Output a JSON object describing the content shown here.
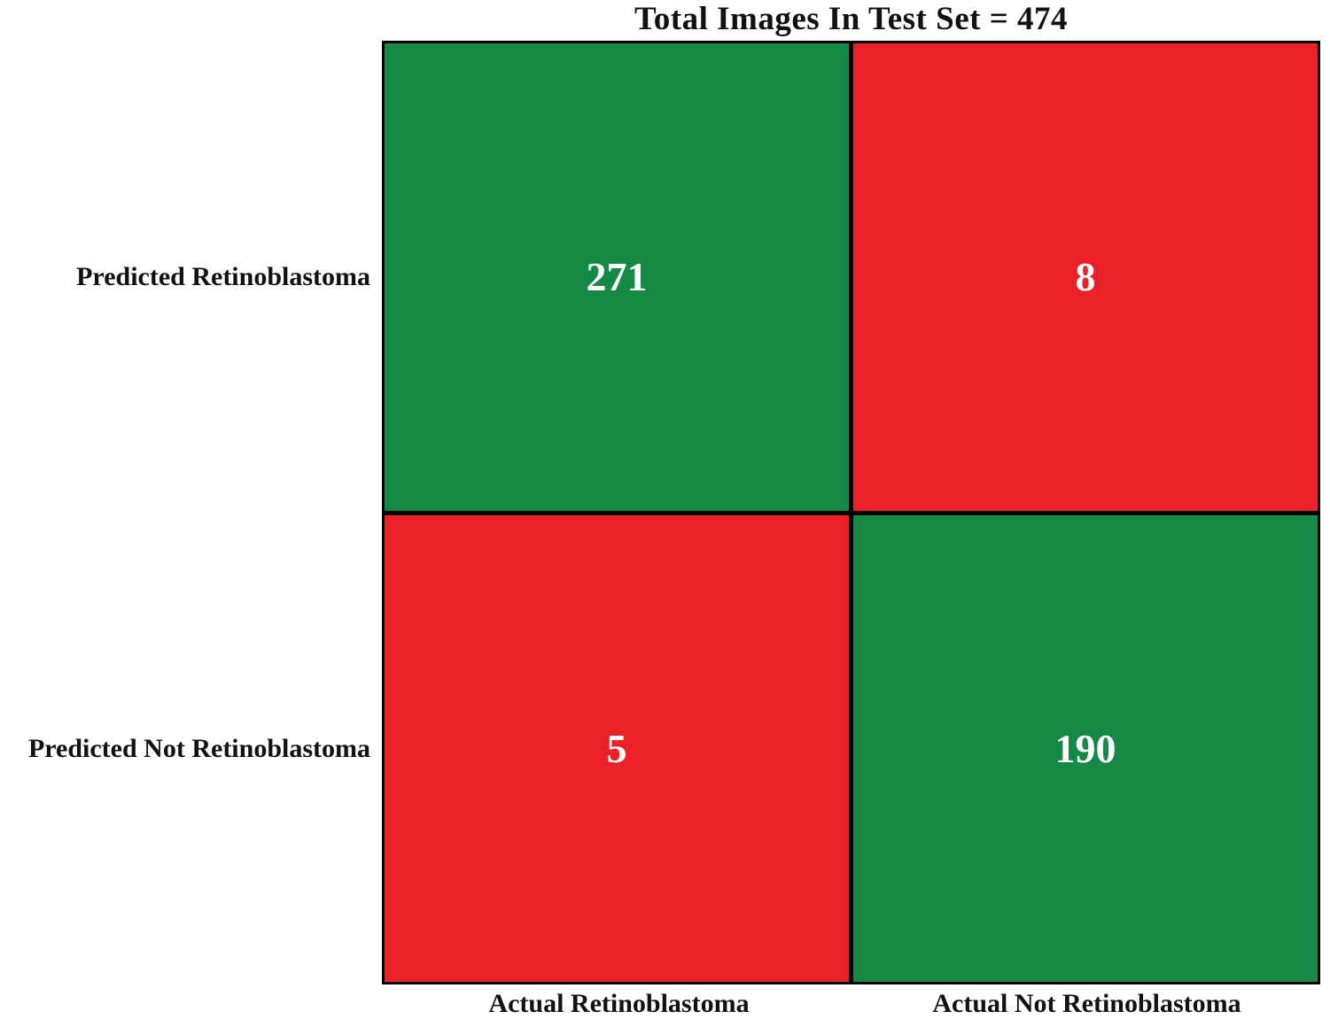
{
  "chart_data": {
    "type": "heatmap",
    "subtype": "confusion-matrix",
    "title": "Total Images In Test Set = 474",
    "total_images": 474,
    "row_labels": [
      "Predicted Retinoblastoma",
      "Predicted Not Retinoblastoma"
    ],
    "col_labels": [
      "Actual Retinoblastoma",
      "Actual Not Retinoblastoma"
    ],
    "values": [
      [
        "271",
        "8"
      ],
      [
        "5",
        "190"
      ]
    ],
    "cell_colors": [
      [
        "green",
        "red"
      ],
      [
        "red",
        "green"
      ]
    ],
    "legend": "none",
    "grid": "black cell borders"
  },
  "colors": {
    "correct_green": "#158a45",
    "incorrect_red": "#ec2127",
    "border_black": "#000000",
    "cell_text_white": "#ffffff",
    "label_text": "#111111",
    "background": "#ffffff"
  }
}
